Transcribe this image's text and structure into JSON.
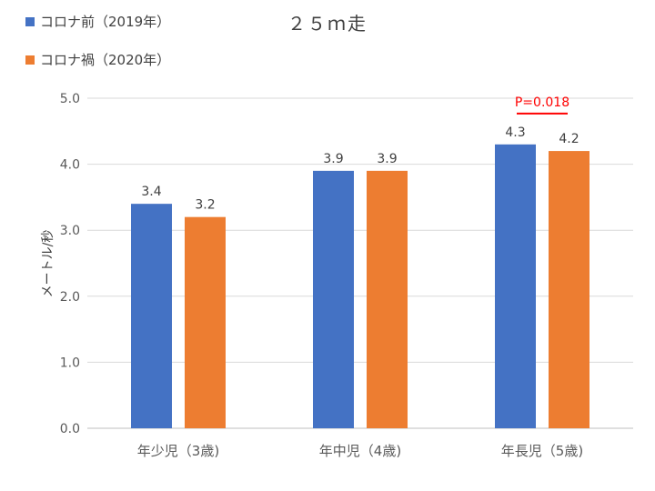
{
  "chart_data": {
    "type": "bar",
    "title": "２５ｍ走",
    "xlabel": "",
    "ylabel": "メートル/秒",
    "ylim": [
      0,
      5
    ],
    "yticks": [
      "0.0",
      "1.0",
      "2.0",
      "3.0",
      "4.0",
      "5.0"
    ],
    "grid": true,
    "legend_position": "top-left",
    "categories": [
      "年少児（3歳)",
      "年中児（4歳)",
      "年長児（5歳)"
    ],
    "series": [
      {
        "name": "コロナ前（2019年）",
        "color": "#4472C4",
        "values": [
          3.4,
          3.9,
          4.3
        ],
        "labels": [
          "3.4",
          "3.9",
          "4.3"
        ]
      },
      {
        "name": "コロナ禍（2020年）",
        "color": "#ED7D31",
        "values": [
          3.2,
          3.9,
          4.2
        ],
        "labels": [
          "3.2",
          "3.9",
          "4.2"
        ]
      }
    ],
    "annotations": [
      {
        "text": "P=0.018",
        "category_index": 2,
        "color": "#FF0000"
      }
    ]
  }
}
